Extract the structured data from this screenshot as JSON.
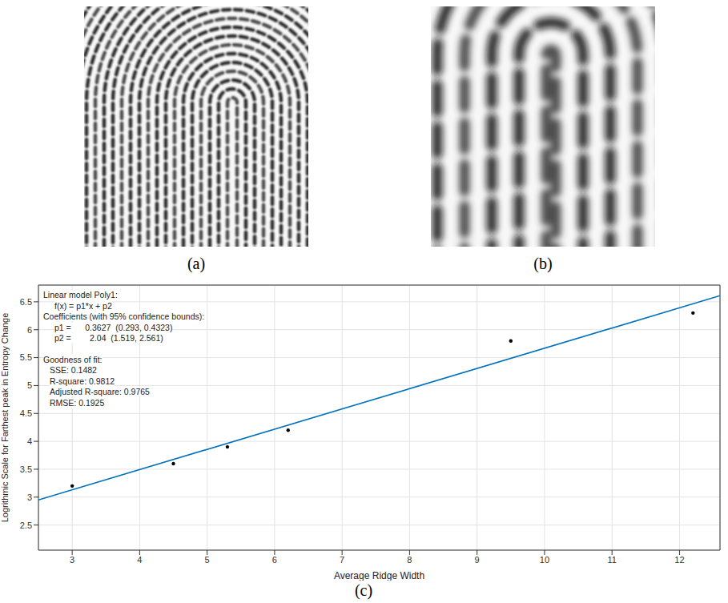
{
  "images": [
    {
      "caption": "(a)"
    },
    {
      "caption": "(b)"
    }
  ],
  "chart_data": {
    "type": "scatter",
    "caption": "(c)",
    "x_label": "Average Ridge Width",
    "y_label": "Logrithmic Scale for Farthest peak in Entropy Change",
    "xlim": [
      2.5,
      12.6
    ],
    "xticks": [
      3,
      4,
      5,
      6,
      7,
      8,
      9,
      10,
      11,
      12
    ],
    "ylim": [
      2.05,
      6.8
    ],
    "yticks": [
      2.5,
      3,
      3.5,
      4,
      4.5,
      5,
      5.5,
      6,
      6.5
    ],
    "grid": true,
    "series": [
      {
        "type": "scatter",
        "marker": "circle",
        "color": "#000000",
        "x": [
          3,
          4.5,
          5.3,
          6.2,
          9.5,
          12.2
        ],
        "values": [
          3.2,
          3.6,
          3.9,
          4.2,
          5.8,
          6.3
        ]
      },
      {
        "type": "line",
        "line_style": "solid",
        "color": "#0072bd",
        "x": [
          2.5,
          12.6
        ],
        "values": [
          2.95,
          6.61
        ]
      }
    ],
    "annotation": {
      "model": "Linear model Poly1:",
      "equation": "f(x) = p1*x + p2",
      "coefficients_title": "Coefficients (with 95% confidence bounds):",
      "coefficients": [
        "p1 =      0.3627  (0.293, 0.4323)",
        "p2 =        2.04  (1.519, 2.561)"
      ],
      "goodness_title": "Goodness of fit:",
      "goodness": [
        "SSE: 0.1482",
        "R-square: 0.9812",
        "Adjusted R-square: 0.9765",
        "RMSE: 0.1925"
      ]
    }
  }
}
